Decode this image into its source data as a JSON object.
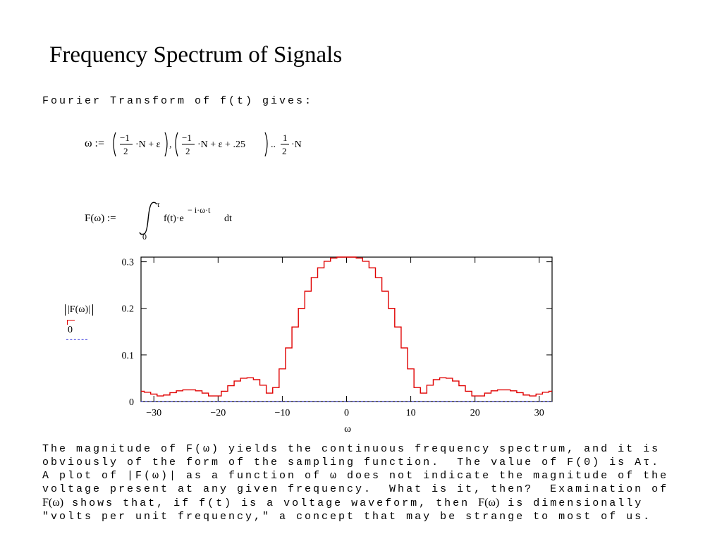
{
  "title": "Frequency Spectrum of Signals",
  "intro": "Fourier Transform of f(t) gives:",
  "equations": {
    "omega_def": "ω := (−1/2·N + ε), (−1/2·N + ε + .25) .. 1/2·N",
    "F_def": "F(ω) := ∫₀^τ f(t)·e^(−i·ω·t) dt"
  },
  "legend": {
    "series_label": "|F(ω)|",
    "zero_label": "0"
  },
  "paragraph": {
    "line1": "The magnitude of F(ω) yields the continuous frequency spectrum, and it is",
    "line2": "obviously of the form of the sampling function.  The value of F(0) is Aτ.",
    "line3": "A plot of |F(ω)| as a function of ω does not indicate the magnitude of the",
    "line4": "voltage present at any given frequency.  What is it, then?  Examination of",
    "line5a": "F(ω)",
    "line5b": " shows that, if f(t) is a voltage waveform, then ",
    "line5c": "F(ω)",
    "line5d": " is dimensionally",
    "line6": "\"volts per unit frequency,\" a concept that may be strange to most of us."
  },
  "chart_data": {
    "type": "line",
    "xlabel": "ω",
    "ylabel": "",
    "xlim": [
      -32,
      32
    ],
    "ylim": [
      0,
      0.31
    ],
    "x_ticks": [
      -30,
      -20,
      -10,
      0,
      10,
      20,
      30
    ],
    "x_tick_labels": [
      "−30",
      "−20",
      "−10",
      "0",
      "10",
      "20",
      "30"
    ],
    "y_ticks": [
      0,
      0.1,
      0.2,
      0.3
    ],
    "y_tick_labels": [
      "0",
      "0.1",
      "0.2",
      "0.3"
    ],
    "grid": false,
    "series": [
      {
        "name": "|F(ω)|",
        "color": "#e00000",
        "x": [
          -32,
          -31,
          -30,
          -29,
          -28,
          -27,
          -26,
          -25,
          -24,
          -23,
          -22,
          -21,
          -20,
          -19,
          -18,
          -17,
          -16,
          -15,
          -14,
          -13,
          -12,
          -11,
          -10,
          -9,
          -8,
          -7,
          -6,
          -5,
          -4,
          -3,
          -2,
          -1,
          0,
          1,
          2,
          3,
          4,
          5,
          6,
          7,
          8,
          9,
          10,
          11,
          12,
          13,
          14,
          15,
          16,
          17,
          18,
          19,
          20,
          21,
          22,
          23,
          24,
          25,
          26,
          27,
          28,
          29,
          30,
          31,
          32
        ],
        "y": [
          0.022,
          0.02,
          0.016,
          0.012,
          0.014,
          0.019,
          0.023,
          0.025,
          0.025,
          0.023,
          0.018,
          0.012,
          0.012,
          0.022,
          0.034,
          0.044,
          0.05,
          0.051,
          0.047,
          0.035,
          0.018,
          0.03,
          0.07,
          0.115,
          0.16,
          0.2,
          0.237,
          0.266,
          0.287,
          0.301,
          0.308,
          0.31,
          0.31,
          0.31,
          0.308,
          0.301,
          0.287,
          0.266,
          0.237,
          0.2,
          0.16,
          0.115,
          0.07,
          0.03,
          0.018,
          0.035,
          0.047,
          0.051,
          0.05,
          0.044,
          0.034,
          0.022,
          0.012,
          0.012,
          0.018,
          0.023,
          0.025,
          0.025,
          0.023,
          0.019,
          0.014,
          0.012,
          0.016,
          0.02,
          0.022
        ]
      },
      {
        "name": "0",
        "color": "#2a2adb",
        "x": [
          -32,
          32
        ],
        "y": [
          0,
          0
        ]
      }
    ]
  }
}
